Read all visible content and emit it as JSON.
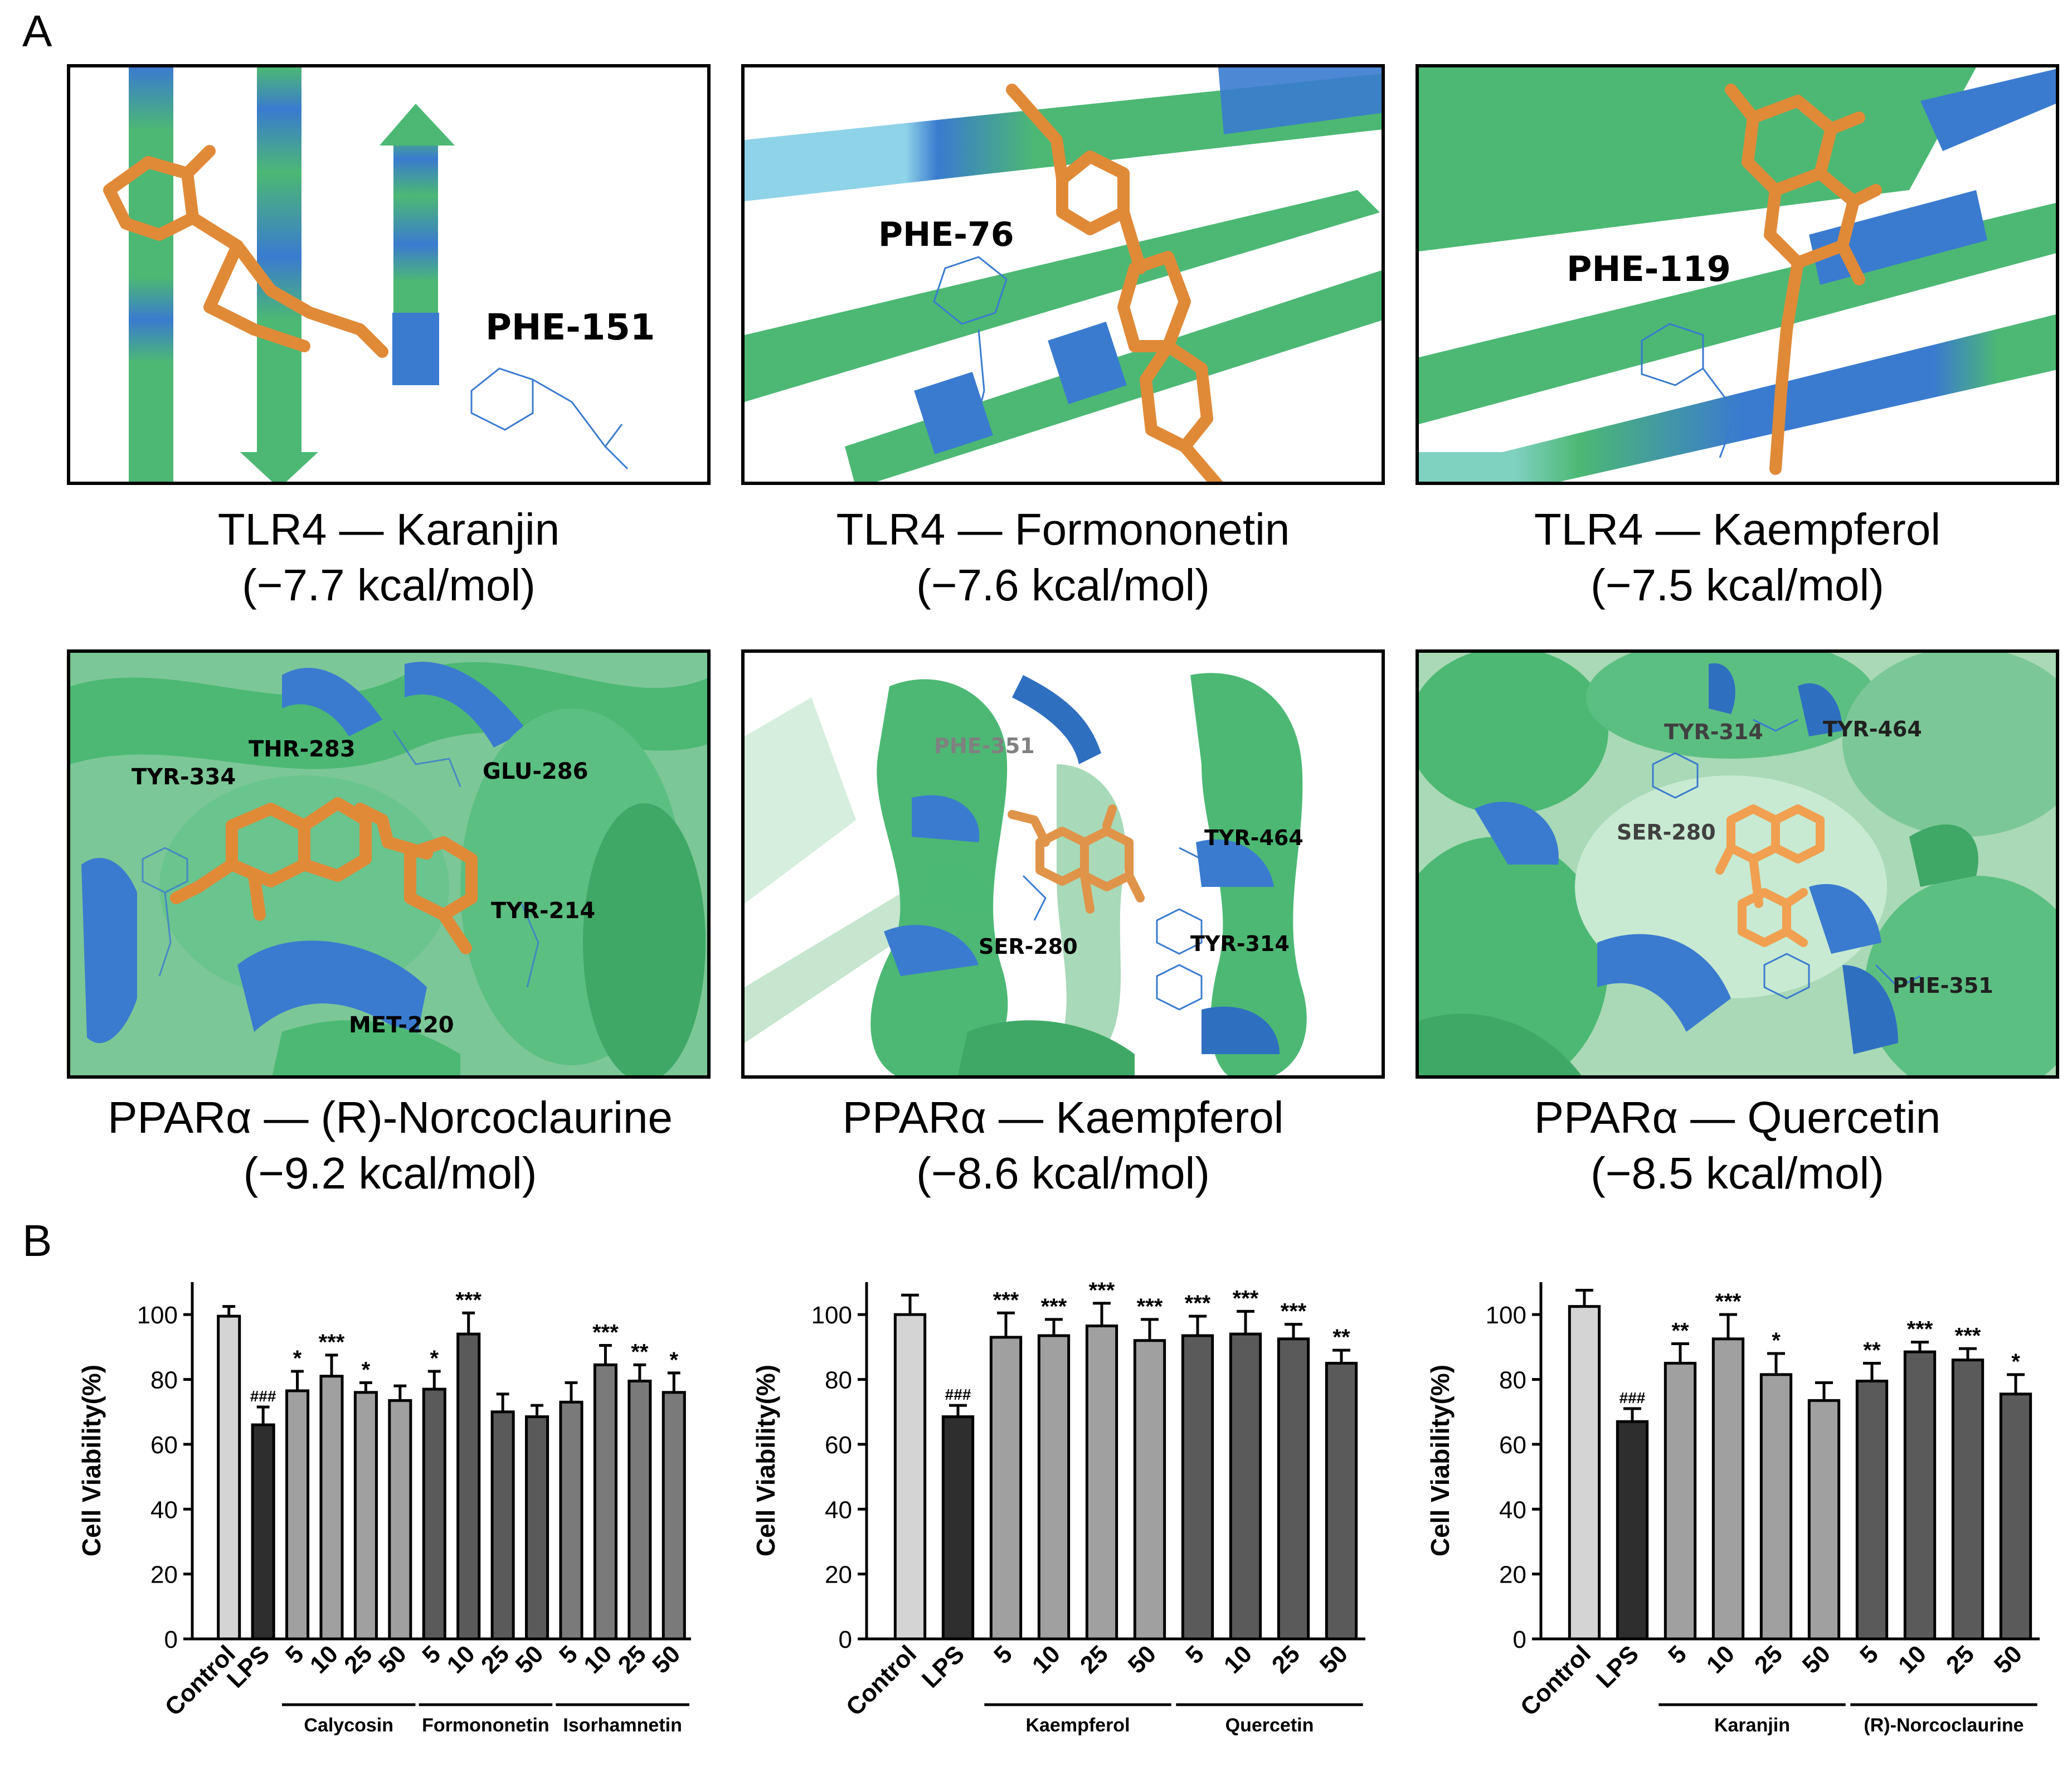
{
  "panel_a_label": "A",
  "panel_b_label": "B",
  "docking": [
    {
      "protein": "TLR4",
      "ligand": "Karanjin",
      "title": "TLR4 — Karanjin",
      "energy": "(−7.7 kcal/mol)",
      "residues": [
        "PHE-151"
      ]
    },
    {
      "protein": "TLR4",
      "ligand": "Formononetin",
      "title": "TLR4 — Formononetin",
      "energy": "(−7.6 kcal/mol)",
      "residues": [
        "PHE-76"
      ]
    },
    {
      "protein": "TLR4",
      "ligand": "Kaempferol",
      "title": "TLR4 — Kaempferol",
      "energy": "(−7.5 kcal/mol)",
      "residues": [
        "PHE-119"
      ]
    },
    {
      "protein": "PPARα",
      "ligand": "(R)-Norcoclaurine",
      "title": "PPARα — (R)-Norcoclaurine",
      "energy": "(−9.2 kcal/mol)",
      "residues": [
        "TYR-334",
        "THR-283",
        "GLU-286",
        "TYR-214",
        "MET-220"
      ]
    },
    {
      "protein": "PPARα",
      "ligand": "Kaempferol",
      "title": "PPARα — Kaempferol",
      "energy": "(−8.6 kcal/mol)",
      "residues": [
        "PHE-351",
        "TYR-464",
        "SER-280",
        "TYR-314"
      ]
    },
    {
      "protein": "PPARα",
      "ligand": "Quercetin",
      "title": "PPARα — Quercetin",
      "energy": "(−8.5 kcal/mol)",
      "residues": [
        "TYR-314",
        "TYR-464",
        "SER-280",
        "PHE-351"
      ]
    }
  ],
  "colors": {
    "ribbon_green": "#4cb874",
    "ribbon_blue": "#3a7bcf",
    "ligand_orange": "#e08a38",
    "bar_control": "#d4d4d4",
    "bar_lps": "#2e2e2e",
    "bar_light": "#a0a0a0",
    "bar_mid": "#7a7a7a",
    "bar_dark": "#5a5a5a"
  },
  "chart_data": [
    {
      "type": "bar",
      "ylabel": "Cell Viability(%)",
      "ylim": [
        0,
        110
      ],
      "yticks": [
        0,
        20,
        40,
        60,
        80,
        100
      ],
      "categories": [
        "Control",
        "LPS",
        "5",
        "10",
        "25",
        "50",
        "5",
        "10",
        "25",
        "50",
        "5",
        "10",
        "25",
        "50"
      ],
      "values": [
        99.5,
        66,
        76.5,
        81,
        76,
        73.5,
        77,
        94,
        70,
        68.5,
        73,
        84.5,
        79.5,
        76
      ],
      "errors": [
        3,
        5.5,
        6,
        6.5,
        3,
        4.5,
        5.5,
        6.5,
        5.5,
        3.5,
        6,
        6,
        5,
        6
      ],
      "significance": [
        "",
        "###",
        "*",
        "***",
        "*",
        "",
        "*",
        "***",
        "",
        "",
        "",
        "***",
        "**",
        "*"
      ],
      "bar_colors": [
        "#d4d4d4",
        "#2e2e2e",
        "#a0a0a0",
        "#a0a0a0",
        "#a0a0a0",
        "#a0a0a0",
        "#5a5a5a",
        "#5a5a5a",
        "#5a5a5a",
        "#5a5a5a",
        "#7a7a7a",
        "#7a7a7a",
        "#7a7a7a",
        "#7a7a7a"
      ],
      "groups": [
        {
          "name": "Calycosin",
          "from": 2,
          "to": 5
        },
        {
          "name": "Formononetin",
          "from": 6,
          "to": 9
        },
        {
          "name": "Isorhamnetin",
          "from": 10,
          "to": 13
        }
      ]
    },
    {
      "type": "bar",
      "ylabel": "Cell Viability(%)",
      "ylim": [
        0,
        110
      ],
      "yticks": [
        0,
        20,
        40,
        60,
        80,
        100
      ],
      "categories": [
        "Control",
        "LPS",
        "5",
        "10",
        "25",
        "50",
        "5",
        "10",
        "25",
        "50"
      ],
      "values": [
        100,
        68.5,
        93,
        93.5,
        96.5,
        92,
        93.5,
        94,
        92.5,
        85
      ],
      "errors": [
        6,
        3.5,
        7.5,
        5,
        7,
        6.5,
        6,
        7,
        4.5,
        4
      ],
      "significance": [
        "",
        "###",
        "***",
        "***",
        "***",
        "***",
        "***",
        "***",
        "***",
        "**"
      ],
      "bar_colors": [
        "#d4d4d4",
        "#2e2e2e",
        "#a0a0a0",
        "#a0a0a0",
        "#a0a0a0",
        "#a0a0a0",
        "#5a5a5a",
        "#5a5a5a",
        "#5a5a5a",
        "#5a5a5a"
      ],
      "groups": [
        {
          "name": "Kaempferol",
          "from": 2,
          "to": 5
        },
        {
          "name": "Quercetin",
          "from": 6,
          "to": 9
        }
      ]
    },
    {
      "type": "bar",
      "ylabel": "Cell Viability(%)",
      "ylim": [
        0,
        110
      ],
      "yticks": [
        0,
        20,
        40,
        60,
        80,
        100
      ],
      "categories": [
        "Control",
        "LPS",
        "5",
        "10",
        "25",
        "50",
        "5",
        "10",
        "25",
        "50"
      ],
      "values": [
        102.5,
        67,
        85,
        92.5,
        81.5,
        73.5,
        79.5,
        88.5,
        86,
        75.5
      ],
      "errors": [
        5,
        4,
        6,
        7.5,
        6.5,
        5.5,
        5.5,
        3,
        3.5,
        6
      ],
      "significance": [
        "",
        "###",
        "**",
        "***",
        "*",
        "",
        "**",
        "***",
        "***",
        "*"
      ],
      "bar_colors": [
        "#d4d4d4",
        "#2e2e2e",
        "#a0a0a0",
        "#a0a0a0",
        "#a0a0a0",
        "#a0a0a0",
        "#5a5a5a",
        "#5a5a5a",
        "#5a5a5a",
        "#5a5a5a"
      ],
      "groups": [
        {
          "name": "Karanjin",
          "from": 2,
          "to": 5
        },
        {
          "name": "(R)-Norcoclaurine",
          "from": 6,
          "to": 9
        }
      ]
    }
  ]
}
